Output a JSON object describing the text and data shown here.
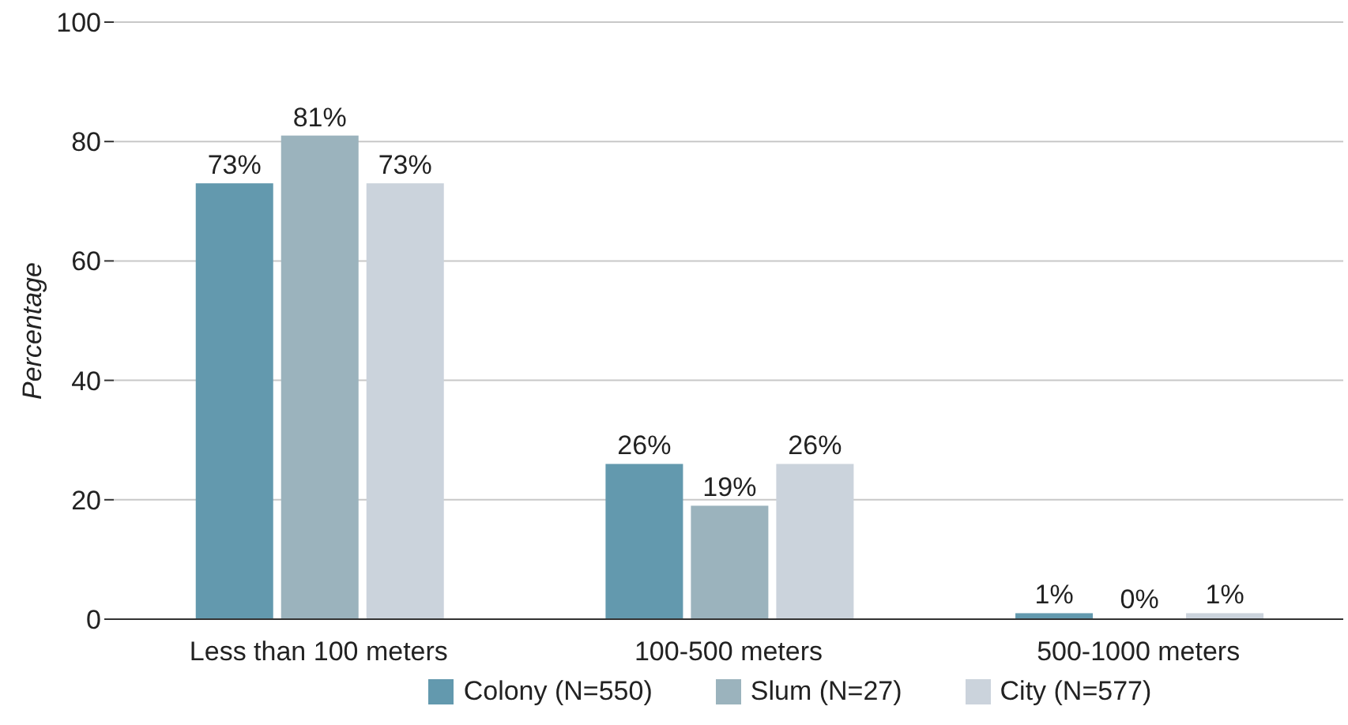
{
  "chart_data": {
    "type": "bar",
    "ylabel": "Percentage",
    "categories": [
      "Less than 100 meters",
      "100-500 meters",
      "500-1000 meters"
    ],
    "series": [
      {
        "name": "Colony (N=550)",
        "color": "#6399ae",
        "values": [
          73,
          26,
          1
        ],
        "value_labels": [
          "73%",
          "26%",
          "1%"
        ]
      },
      {
        "name": "Slum (N=27)",
        "color": "#9bb3bd",
        "values": [
          81,
          19,
          0
        ],
        "value_labels": [
          "81%",
          "19%",
          "0%"
        ]
      },
      {
        "name": "City (N=577)",
        "color": "#cbd3dc",
        "values": [
          73,
          26,
          1
        ],
        "value_labels": [
          "73%",
          "26%",
          "1%"
        ]
      }
    ],
    "ylim": [
      0,
      100
    ],
    "yticks": [
      0,
      20,
      40,
      60,
      80,
      100
    ],
    "grid": "y",
    "legend": "bottom"
  }
}
